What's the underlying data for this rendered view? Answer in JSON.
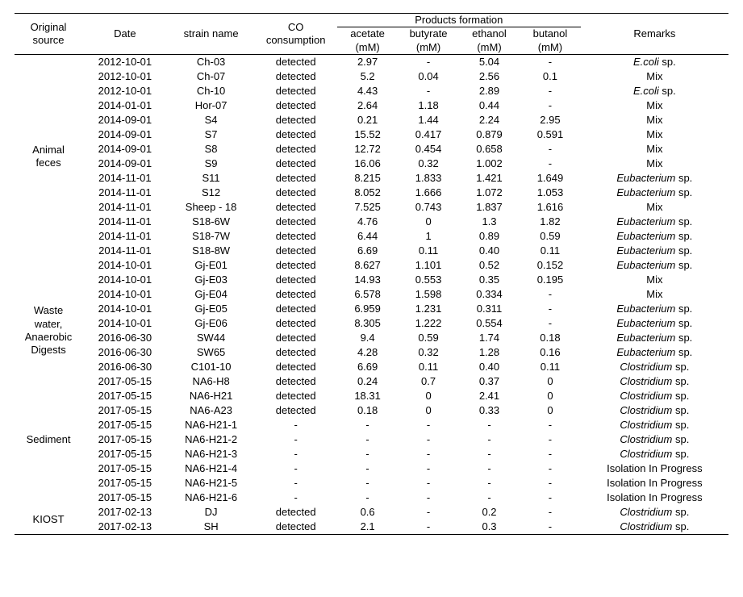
{
  "header": {
    "source": "Original\nsource",
    "date": "Date",
    "strain": "strain name",
    "co": "CO\nconsumption",
    "products_group": "Products formation",
    "remarks": "Remarks",
    "sub": {
      "acetate": "acetate\n(mM)",
      "butyrate": "butyrate\n(mM)",
      "ethanol": "ethanol\n(mM)",
      "butanol": "butanol\n(mM)"
    }
  },
  "sources": [
    {
      "label": "Animal\nfeces",
      "start": 0,
      "span": 14
    },
    {
      "label": "Waste\nwater,\nAnaerobic\nDigests",
      "start": 14,
      "span": 10
    },
    {
      "label": "",
      "start": 24,
      "span": 1
    },
    {
      "label": "Sediment",
      "start": 25,
      "span": 3
    },
    {
      "label": "",
      "start": 28,
      "span": 1
    },
    {
      "label": "",
      "start": 29,
      "span": 1
    },
    {
      "label": "",
      "start": 30,
      "span": 1
    },
    {
      "label": "KIOST",
      "start": 31,
      "span": 2
    }
  ],
  "rows": [
    {
      "date": "2012-10-01",
      "strain": "Ch-03",
      "co": "detected",
      "acetate": "2.97",
      "butyrate": "-",
      "ethanol": "5.04",
      "butanol": "-",
      "remarks": "E.coli",
      "suffix": " sp."
    },
    {
      "date": "2012-10-01",
      "strain": "Ch-07",
      "co": "detected",
      "acetate": "5.2",
      "butyrate": "0.04",
      "ethanol": "2.56",
      "butanol": "0.1",
      "remarks": "Mix",
      "suffix": ""
    },
    {
      "date": "2012-10-01",
      "strain": "Ch-10",
      "co": "detected",
      "acetate": "4.43",
      "butyrate": "-",
      "ethanol": "2.89",
      "butanol": "-",
      "remarks": "E.coli",
      "suffix": " sp."
    },
    {
      "date": "2014-01-01",
      "strain": "Hor-07",
      "co": "detected",
      "acetate": "2.64",
      "butyrate": "1.18",
      "ethanol": "0.44",
      "butanol": "-",
      "remarks": "Mix",
      "suffix": ""
    },
    {
      "date": "2014-09-01",
      "strain": "S4",
      "co": "detected",
      "acetate": "0.21",
      "butyrate": "1.44",
      "ethanol": "2.24",
      "butanol": "2.95",
      "remarks": "Mix",
      "suffix": ""
    },
    {
      "date": "2014-09-01",
      "strain": "S7",
      "co": "detected",
      "acetate": "15.52",
      "butyrate": "0.417",
      "ethanol": "0.879",
      "butanol": "0.591",
      "remarks": "Mix",
      "suffix": ""
    },
    {
      "date": "2014-09-01",
      "strain": "S8",
      "co": "detected",
      "acetate": "12.72",
      "butyrate": "0.454",
      "ethanol": "0.658",
      "butanol": "-",
      "remarks": "Mix",
      "suffix": ""
    },
    {
      "date": "2014-09-01",
      "strain": "S9",
      "co": "detected",
      "acetate": "16.06",
      "butyrate": "0.32",
      "ethanol": "1.002",
      "butanol": "-",
      "remarks": "Mix",
      "suffix": ""
    },
    {
      "date": "2014-11-01",
      "strain": "S11",
      "co": "detected",
      "acetate": "8.215",
      "butyrate": "1.833",
      "ethanol": "1.421",
      "butanol": "1.649",
      "remarks": "Eubacterium",
      "suffix": " sp."
    },
    {
      "date": "2014-11-01",
      "strain": "S12",
      "co": "detected",
      "acetate": "8.052",
      "butyrate": "1.666",
      "ethanol": "1.072",
      "butanol": "1.053",
      "remarks": "Eubacterium",
      "suffix": " sp."
    },
    {
      "date": "2014-11-01",
      "strain": "Sheep - 18",
      "co": "detected",
      "acetate": "7.525",
      "butyrate": "0.743",
      "ethanol": "1.837",
      "butanol": "1.616",
      "remarks": "Mix",
      "suffix": ""
    },
    {
      "date": "2014-11-01",
      "strain": "S18-6W",
      "co": "detected",
      "acetate": "4.76",
      "butyrate": "0",
      "ethanol": "1.3",
      "butanol": "1.82",
      "remarks": "Eubacterium",
      "suffix": " sp."
    },
    {
      "date": "2014-11-01",
      "strain": "S18-7W",
      "co": "detected",
      "acetate": "6.44",
      "butyrate": "1",
      "ethanol": "0.89",
      "butanol": "0.59",
      "remarks": "Eubacterium",
      "suffix": " sp."
    },
    {
      "date": "2014-11-01",
      "strain": "S18-8W",
      "co": "detected",
      "acetate": "6.69",
      "butyrate": "0.11",
      "ethanol": "0.40",
      "butanol": "0.11",
      "remarks": "Eubacterium",
      "suffix": " sp."
    },
    {
      "date": "2014-10-01",
      "strain": "Gj-E01",
      "co": "detected",
      "acetate": "8.627",
      "butyrate": "1.101",
      "ethanol": "0.52",
      "butanol": "0.152",
      "remarks": "Eubacterium",
      "suffix": " sp."
    },
    {
      "date": "2014-10-01",
      "strain": "Gj-E03",
      "co": "detected",
      "acetate": "14.93",
      "butyrate": "0.553",
      "ethanol": "0.35",
      "butanol": "0.195",
      "remarks": "Mix",
      "suffix": ""
    },
    {
      "date": "2014-10-01",
      "strain": "Gj-E04",
      "co": "detected",
      "acetate": "6.578",
      "butyrate": "1.598",
      "ethanol": "0.334",
      "butanol": "-",
      "remarks": "Mix",
      "suffix": ""
    },
    {
      "date": "2014-10-01",
      "strain": "Gj-E05",
      "co": "detected",
      "acetate": "6.959",
      "butyrate": "1.231",
      "ethanol": "0.311",
      "butanol": "-",
      "remarks": "Eubacterium",
      "suffix": " sp."
    },
    {
      "date": "2014-10-01",
      "strain": "Gj-E06",
      "co": "detected",
      "acetate": "8.305",
      "butyrate": "1.222",
      "ethanol": "0.554",
      "butanol": "-",
      "remarks": "Eubacterium",
      "suffix": " sp."
    },
    {
      "date": "2016-06-30",
      "strain": "SW44",
      "co": "detected",
      "acetate": "9.4",
      "butyrate": "0.59",
      "ethanol": "1.74",
      "butanol": "0.18",
      "remarks": "Eubacterium",
      "suffix": " sp."
    },
    {
      "date": "2016-06-30",
      "strain": "SW65",
      "co": "detected",
      "acetate": "4.28",
      "butyrate": "0.32",
      "ethanol": "1.28",
      "butanol": "0.16",
      "remarks": "Eubacterium",
      "suffix": " sp."
    },
    {
      "date": "2016-06-30",
      "strain": "C101-10",
      "co": "detected",
      "acetate": "6.69",
      "butyrate": "0.11",
      "ethanol": "0.40",
      "butanol": "0.11",
      "remarks": "Clostridium",
      "suffix": " sp."
    },
    {
      "date": "2017-05-15",
      "strain": "NA6-H8",
      "co": "detected",
      "acetate": "0.24",
      "butyrate": "0.7",
      "ethanol": "0.37",
      "butanol": "0",
      "remarks": "Clostridium",
      "suffix": " sp."
    },
    {
      "date": "2017-05-15",
      "strain": "NA6-H21",
      "co": "detected",
      "acetate": "18.31",
      "butyrate": "0",
      "ethanol": "2.41",
      "butanol": "0",
      "remarks": "Clostridium",
      "suffix": " sp."
    },
    {
      "date": "2017-05-15",
      "strain": "NA6-A23",
      "co": "detected",
      "acetate": "0.18",
      "butyrate": "0",
      "ethanol": "0.33",
      "butanol": "0",
      "remarks": "Clostridium",
      "suffix": " sp."
    },
    {
      "date": "2017-05-15",
      "strain": "NA6-H21-1",
      "co": "-",
      "acetate": "-",
      "butyrate": "-",
      "ethanol": "-",
      "butanol": "-",
      "remarks": "Clostridium",
      "suffix": " sp."
    },
    {
      "date": "2017-05-15",
      "strain": "NA6-H21-2",
      "co": "-",
      "acetate": "-",
      "butyrate": "-",
      "ethanol": "-",
      "butanol": "-",
      "remarks": "Clostridium",
      "suffix": " sp."
    },
    {
      "date": "2017-05-15",
      "strain": "NA6-H21-3",
      "co": "-",
      "acetate": "-",
      "butyrate": "-",
      "ethanol": "-",
      "butanol": "-",
      "remarks": "Clostridium",
      "suffix": " sp."
    },
    {
      "date": "2017-05-15",
      "strain": "NA6-H21-4",
      "co": "-",
      "acetate": "-",
      "butyrate": "-",
      "ethanol": "-",
      "butanol": "-",
      "remarks": "Isolation In Progress",
      "suffix": "",
      "plain": true
    },
    {
      "date": "2017-05-15",
      "strain": "NA6-H21-5",
      "co": "-",
      "acetate": "-",
      "butyrate": "-",
      "ethanol": "-",
      "butanol": "-",
      "remarks": "Isolation In Progress",
      "suffix": "",
      "plain": true
    },
    {
      "date": "2017-05-15",
      "strain": "NA6-H21-6",
      "co": "-",
      "acetate": "-",
      "butyrate": "-",
      "ethanol": "-",
      "butanol": "-",
      "remarks": "Isolation In Progress",
      "suffix": "",
      "plain": true
    },
    {
      "date": "2017-02-13",
      "strain": "DJ",
      "co": "detected",
      "acetate": "0.6",
      "butyrate": "-",
      "ethanol": "0.2",
      "butanol": "-",
      "remarks": "Clostridium",
      "suffix": " sp."
    },
    {
      "date": "2017-02-13",
      "strain": "SH",
      "co": "detected",
      "acetate": "2.1",
      "butyrate": "-",
      "ethanol": "0.3",
      "butanol": "-",
      "remarks": "Clostridium",
      "suffix": " sp."
    }
  ]
}
